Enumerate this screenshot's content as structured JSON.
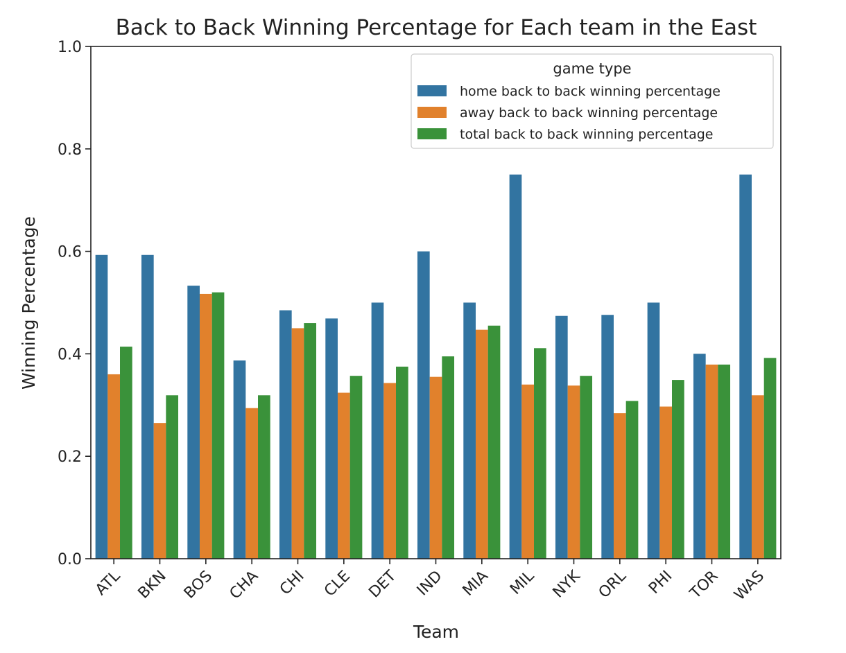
{
  "chart_data": {
    "type": "bar",
    "title": "Back to Back Winning Percentage for Each team in the East",
    "xlabel": "Team",
    "ylabel": "Winning Percentage",
    "ylim": [
      0,
      1.0
    ],
    "yticks": [
      "0.0",
      "0.2",
      "0.4",
      "0.6",
      "0.8",
      "1.0"
    ],
    "grid": false,
    "legend": {
      "title": "game type",
      "placement": "top-right"
    },
    "categories": [
      "ATL",
      "BKN",
      "BOS",
      "CHA",
      "CHI",
      "CLE",
      "DET",
      "IND",
      "MIA",
      "MIL",
      "NYK",
      "ORL",
      "PHI",
      "TOR",
      "WAS"
    ],
    "series": [
      {
        "name": "home back to back winning percentage",
        "color": "#3274a1",
        "values": [
          0.593,
          0.593,
          0.533,
          0.387,
          0.485,
          0.469,
          0.5,
          0.6,
          0.5,
          0.75,
          0.474,
          0.476,
          0.5,
          0.4,
          0.75
        ]
      },
      {
        "name": "away back to back winning percentage",
        "color": "#e1812c",
        "values": [
          0.36,
          0.265,
          0.517,
          0.294,
          0.45,
          0.324,
          0.343,
          0.355,
          0.447,
          0.34,
          0.338,
          0.284,
          0.297,
          0.379,
          0.319
        ]
      },
      {
        "name": "total back to back winning percentage",
        "color": "#3a923a",
        "values": [
          0.414,
          0.319,
          0.52,
          0.319,
          0.46,
          0.357,
          0.375,
          0.395,
          0.455,
          0.411,
          0.357,
          0.308,
          0.349,
          0.379,
          0.392
        ]
      }
    ]
  }
}
